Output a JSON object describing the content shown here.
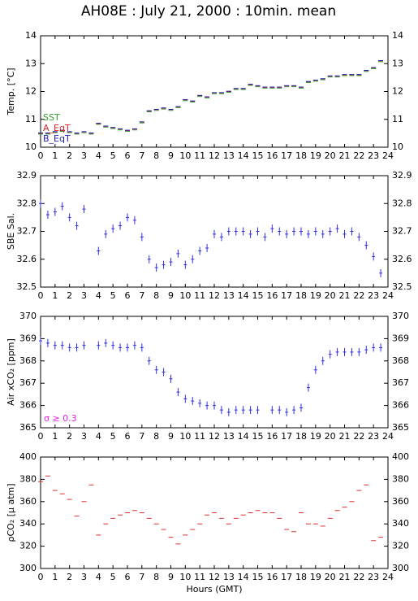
{
  "chart_data": [
    {
      "type": "scatter",
      "marker": "dash",
      "title": "AH08E : July 21, 2000 : 10min. mean",
      "ylabel": "Temp. [°C]",
      "x": [
        0,
        0.5,
        1,
        1.5,
        2,
        2.5,
        3,
        3.5,
        4,
        4.5,
        5,
        5.5,
        6,
        6.5,
        7,
        7.5,
        8,
        8.5,
        9,
        9.5,
        10,
        10.5,
        11,
        11.5,
        12,
        12.5,
        13,
        13.5,
        14,
        14.5,
        15,
        15.5,
        16,
        16.5,
        17,
        17.5,
        18,
        18.5,
        19,
        19.5,
        20,
        20.5,
        21,
        21.5,
        22,
        22.5,
        23,
        23.5
      ],
      "series": [
        {
          "name": "SST",
          "color": "#2ca02c",
          "values": [
            10.47,
            10.47,
            10.52,
            10.57,
            10.52,
            10.47,
            10.52,
            10.47,
            10.82,
            10.72,
            10.67,
            10.62,
            10.57,
            10.62,
            10.87,
            11.27,
            11.32,
            11.37,
            11.32,
            11.42,
            11.67,
            11.62,
            11.82,
            11.77,
            11.92,
            11.92,
            11.97,
            12.07,
            12.07,
            12.22,
            12.17,
            12.12,
            12.12,
            12.12,
            12.17,
            12.17,
            12.12,
            12.32,
            12.37,
            12.42,
            12.52,
            12.52,
            12.57,
            12.57,
            12.57,
            12.72,
            12.82,
            13.07
          ]
        },
        {
          "name": "A_EqT",
          "color": "#d62728",
          "values": [
            10.5,
            10.5,
            10.55,
            10.6,
            10.55,
            10.5,
            10.55,
            10.5,
            10.85,
            10.75,
            10.7,
            10.65,
            10.6,
            10.65,
            10.9,
            11.3,
            11.35,
            11.4,
            11.35,
            11.45,
            11.7,
            11.65,
            11.85,
            11.8,
            11.95,
            11.95,
            12.0,
            12.1,
            12.1,
            12.25,
            12.2,
            12.15,
            12.15,
            12.15,
            12.2,
            12.2,
            12.15,
            12.35,
            12.4,
            12.45,
            12.55,
            12.55,
            12.6,
            12.6,
            12.6,
            12.75,
            12.85,
            13.1
          ]
        },
        {
          "name": "B_EqT",
          "color": "#1f1fb4",
          "values": [
            10.51,
            10.51,
            10.56,
            10.61,
            10.56,
            10.51,
            10.56,
            10.51,
            10.86,
            10.76,
            10.71,
            10.66,
            10.61,
            10.66,
            10.91,
            11.31,
            11.36,
            11.41,
            11.36,
            11.46,
            11.71,
            11.66,
            11.86,
            11.81,
            11.96,
            11.96,
            12.01,
            12.11,
            12.11,
            12.26,
            12.21,
            12.16,
            12.16,
            12.16,
            12.21,
            12.21,
            12.16,
            12.36,
            12.41,
            12.46,
            12.56,
            12.56,
            12.61,
            12.61,
            12.61,
            12.76,
            12.86,
            13.11
          ]
        }
      ],
      "xlim": [
        0,
        24
      ],
      "xticks": [
        0,
        1,
        2,
        3,
        4,
        5,
        6,
        7,
        8,
        9,
        10,
        11,
        12,
        13,
        14,
        15,
        16,
        17,
        18,
        19,
        20,
        21,
        22,
        23,
        24
      ],
      "ylim": [
        10,
        14
      ],
      "yticks": [
        10,
        11,
        12,
        13,
        14
      ],
      "legend": "lower left"
    },
    {
      "type": "scatter",
      "marker": "plus",
      "ylabel": "SBE Sal.",
      "x": [
        0,
        0.5,
        1,
        1.5,
        2,
        2.5,
        3,
        3.5,
        4,
        4.5,
        5,
        5.5,
        6,
        6.5,
        7,
        7.5,
        8,
        8.5,
        9,
        9.5,
        10,
        10.5,
        11,
        11.5,
        12,
        12.5,
        13,
        13.5,
        14,
        14.5,
        15,
        15.5,
        16,
        16.5,
        17,
        17.5,
        18,
        18.5,
        19,
        19.5,
        20,
        20.5,
        21,
        21.5,
        22,
        22.5,
        23,
        23.5
      ],
      "series": [
        {
          "name": "SBE Sal.",
          "color": "#3030e0",
          "values": [
            32.8,
            32.76,
            32.77,
            32.79,
            32.75,
            32.72,
            32.78,
            null,
            32.63,
            32.69,
            32.71,
            32.72,
            32.75,
            32.74,
            32.68,
            32.6,
            32.57,
            32.58,
            32.59,
            32.62,
            32.58,
            32.6,
            32.63,
            32.64,
            32.69,
            32.68,
            32.7,
            32.7,
            32.7,
            32.69,
            32.7,
            32.68,
            32.71,
            32.7,
            32.69,
            32.7,
            32.7,
            32.69,
            32.7,
            32.69,
            32.7,
            32.71,
            32.69,
            32.7,
            32.68,
            32.65,
            32.61,
            32.55
          ]
        }
      ],
      "xlim": [
        0,
        24
      ],
      "xticks": [
        0,
        1,
        2,
        3,
        4,
        5,
        6,
        7,
        8,
        9,
        10,
        11,
        12,
        13,
        14,
        15,
        16,
        17,
        18,
        19,
        20,
        21,
        22,
        23,
        24
      ],
      "ylim": [
        32.5,
        32.9
      ],
      "yticks": [
        32.5,
        32.6,
        32.7,
        32.8,
        32.9
      ]
    },
    {
      "type": "scatter",
      "marker": "plus",
      "ylabel": "Air xCO₂ [ppm]",
      "annotation": "σ ≥ 0.3",
      "x": [
        0,
        0.5,
        1,
        1.5,
        2,
        2.5,
        3,
        3.5,
        4,
        4.5,
        5,
        5.5,
        6,
        6.5,
        7,
        7.5,
        8,
        8.5,
        9,
        9.5,
        10,
        10.5,
        11,
        11.5,
        12,
        12.5,
        13,
        13.5,
        14,
        14.5,
        15,
        15.5,
        16,
        16.5,
        17,
        17.5,
        18,
        18.5,
        19,
        19.5,
        20,
        20.5,
        21,
        21.5,
        22,
        22.5,
        23,
        23.5
      ],
      "series": [
        {
          "name": "Air xCO₂",
          "color": "#3030e0",
          "values": [
            368.9,
            368.8,
            368.7,
            368.7,
            368.6,
            368.6,
            368.7,
            null,
            368.7,
            368.8,
            368.7,
            368.6,
            368.6,
            368.7,
            368.6,
            368.0,
            367.6,
            367.5,
            367.2,
            366.6,
            366.3,
            366.2,
            366.1,
            366.0,
            366.0,
            365.8,
            365.7,
            365.8,
            365.8,
            365.8,
            365.8,
            null,
            365.8,
            365.8,
            365.7,
            365.8,
            365.9,
            366.8,
            367.6,
            368.0,
            368.3,
            368.4,
            368.4,
            368.4,
            368.4,
            368.5,
            368.6,
            368.6
          ]
        }
      ],
      "xlim": [
        0,
        24
      ],
      "xticks": [
        0,
        1,
        2,
        3,
        4,
        5,
        6,
        7,
        8,
        9,
        10,
        11,
        12,
        13,
        14,
        15,
        16,
        17,
        18,
        19,
        20,
        21,
        22,
        23,
        24
      ],
      "ylim": [
        365,
        370
      ],
      "yticks": [
        365,
        366,
        367,
        368,
        369,
        370
      ]
    },
    {
      "type": "scatter",
      "marker": "dash",
      "ylabel": "ρCO₂ [μ atm]",
      "xlabel": "Hours (GMT)",
      "x": [
        0,
        0.5,
        1,
        1.5,
        2,
        2.5,
        3,
        3.5,
        4,
        4.5,
        5,
        5.5,
        6,
        6.5,
        7,
        7.5,
        8,
        8.5,
        9,
        9.5,
        10,
        10.5,
        11,
        11.5,
        12,
        12.5,
        13,
        13.5,
        14,
        14.5,
        15,
        15.5,
        16,
        16.5,
        17,
        17.5,
        18,
        18.5,
        19,
        19.5,
        20,
        20.5,
        21,
        21.5,
        22,
        22.5,
        23,
        23.5
      ],
      "series": [
        {
          "name": "ρCO₂",
          "color": "#e03030",
          "values": [
            378,
            383,
            370,
            367,
            362,
            347,
            360,
            375,
            330,
            340,
            345,
            348,
            350,
            352,
            350,
            345,
            340,
            335,
            328,
            322,
            330,
            335,
            340,
            348,
            350,
            345,
            340,
            345,
            348,
            350,
            352,
            350,
            350,
            345,
            335,
            333,
            350,
            340,
            340,
            338,
            345,
            352,
            355,
            360,
            370,
            375,
            325,
            328
          ]
        }
      ],
      "xlim": [
        0,
        24
      ],
      "xticks": [
        0,
        1,
        2,
        3,
        4,
        5,
        6,
        7,
        8,
        9,
        10,
        11,
        12,
        13,
        14,
        15,
        16,
        17,
        18,
        19,
        20,
        21,
        22,
        23,
        24
      ],
      "ylim": [
        300,
        400
      ],
      "yticks": [
        300,
        320,
        340,
        360,
        380,
        400
      ]
    }
  ]
}
